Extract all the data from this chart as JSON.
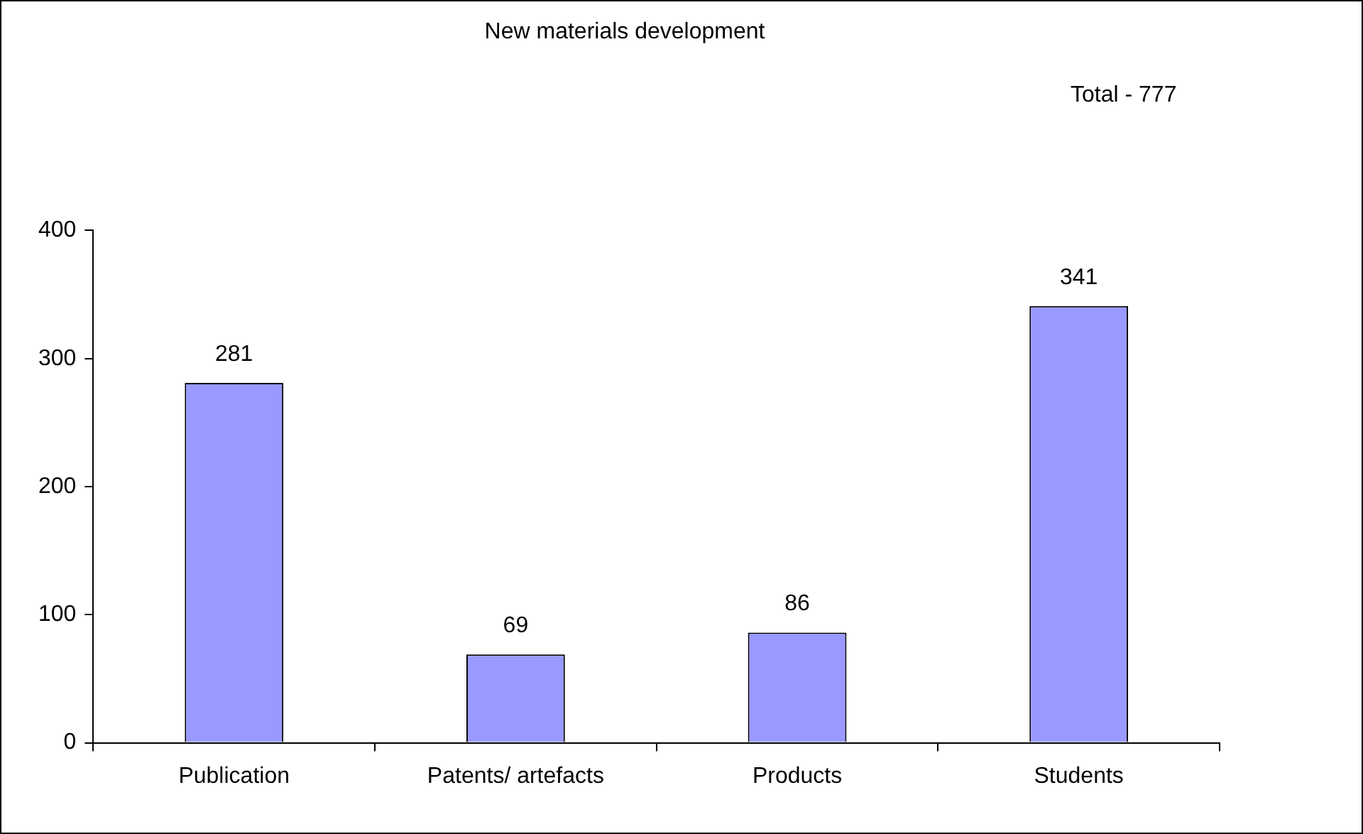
{
  "chart_data": {
    "type": "bar",
    "title": "New materials development",
    "annotations": [
      "Total - 777"
    ],
    "categories": [
      "Publication",
      "Patents/ artefacts",
      "Products",
      "Students"
    ],
    "values": [
      281,
      69,
      86,
      341
    ],
    "color": "#9999ff",
    "ylim": [
      0,
      400
    ],
    "yticks": [
      0,
      100,
      200,
      300,
      400
    ],
    "grid": false,
    "data_labels": true
  }
}
